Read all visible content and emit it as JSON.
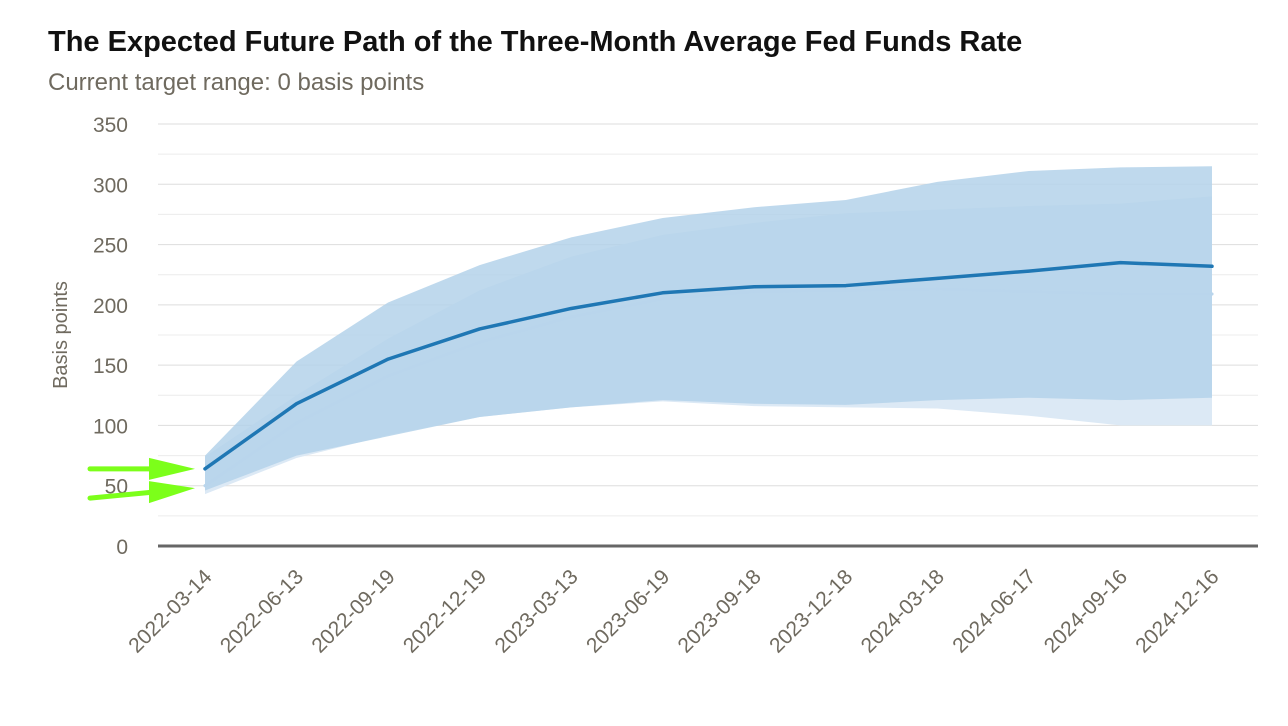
{
  "title": "The Expected Future Path of the Three-Month Average Fed Funds Rate",
  "subtitle": "Current target range: 0 basis points",
  "chart_data": {
    "type": "area",
    "ylabel": "Basis points",
    "xlabel": "",
    "ylim": [
      0,
      350
    ],
    "yticks": [
      0,
      50,
      100,
      150,
      200,
      250,
      300,
      350
    ],
    "grid": true,
    "categories": [
      "2022-03-14",
      "2022-06-13",
      "2022-09-19",
      "2022-12-19",
      "2023-03-13",
      "2023-06-19",
      "2023-09-18",
      "2023-12-18",
      "2024-03-18",
      "2024-06-17",
      "2024-09-16",
      "2024-12-16"
    ],
    "series": [
      {
        "role": "earlier-band",
        "color": "#dce9f5",
        "upper": [
          74,
          125,
          172,
          212,
          240,
          258,
          268,
          276,
          279,
          282,
          284,
          290
        ],
        "lower": [
          43,
          73,
          92,
          107,
          115,
          120,
          116,
          115,
          114,
          108,
          100,
          100
        ]
      },
      {
        "role": "earlier-line",
        "color": "#b9d5ec",
        "values": [
          50,
          102,
          141,
          169,
          190,
          205,
          211,
          212,
          213,
          211,
          209,
          209
        ]
      },
      {
        "role": "current-band",
        "color": "#b4d2ea",
        "upper": [
          75,
          153,
          202,
          233,
          256,
          272,
          281,
          287,
          302,
          311,
          314,
          315
        ],
        "lower": [
          46,
          75,
          91,
          107,
          115,
          121,
          118,
          117,
          121,
          123,
          121,
          123
        ]
      },
      {
        "role": "current-line",
        "color": "#1f77b4",
        "values": [
          64,
          118,
          155,
          180,
          197,
          210,
          215,
          216,
          222,
          228,
          235,
          232
        ]
      }
    ],
    "annotations": [
      {
        "type": "arrow",
        "color": "#7cff1a",
        "target_category": "2022-03-14",
        "target_value": 64
      },
      {
        "type": "arrow",
        "color": "#7cff1a",
        "target_category": "2022-03-14",
        "target_value": 48
      }
    ]
  }
}
